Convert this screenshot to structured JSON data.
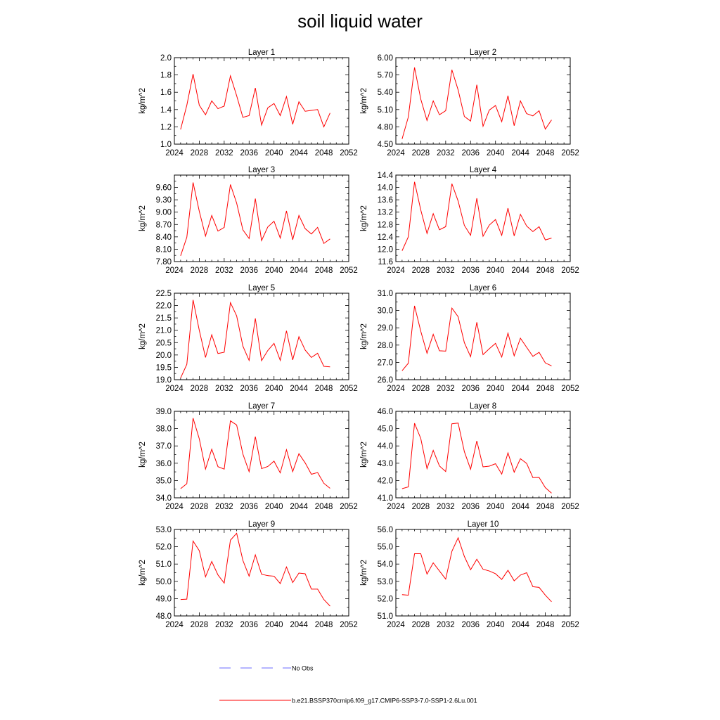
{
  "figure": {
    "title": "soil liquid water"
  },
  "legend": {
    "obs_label": "No Obs",
    "model_label": "b.e21.BSSP370cmip6.f09_g17.CMIP6-SSP3-7.0-SSP1-2.6Lu.001",
    "obs_color": "#3b3bff",
    "model_color": "#ff0000"
  },
  "chart_data": [
    {
      "type": "line",
      "title": "Layer 1",
      "ylabel": "kg/m^2",
      "xlim": [
        2024,
        2052
      ],
      "xticks": [
        2024,
        2028,
        2032,
        2036,
        2040,
        2044,
        2048,
        2052
      ],
      "ylim": [
        1.0,
        2.0
      ],
      "yticks": [
        "1.0",
        "1.2",
        "1.4",
        "1.6",
        "1.8",
        "2.0"
      ],
      "x": [
        2025,
        2026,
        2027,
        2028,
        2029,
        2030,
        2031,
        2032,
        2033,
        2034,
        2035,
        2036,
        2037,
        2038,
        2039,
        2040,
        2041,
        2042,
        2043,
        2044,
        2045,
        2046,
        2047,
        2048,
        2049
      ],
      "series": [
        {
          "values": [
            1.17,
            1.45,
            1.81,
            1.45,
            1.34,
            1.5,
            1.41,
            1.44,
            1.79,
            1.56,
            1.31,
            1.33,
            1.65,
            1.22,
            1.42,
            1.47,
            1.33,
            1.55,
            1.23,
            1.49,
            1.38,
            1.39,
            1.4,
            1.2,
            1.36
          ]
        }
      ]
    },
    {
      "type": "line",
      "title": "Layer 2",
      "ylabel": "kg/m^2",
      "xlim": [
        2024,
        2052
      ],
      "xticks": [
        2024,
        2028,
        2032,
        2036,
        2040,
        2044,
        2048,
        2052
      ],
      "ylim": [
        4.5,
        6.0
      ],
      "yticks": [
        "4.50",
        "4.80",
        "5.10",
        "5.40",
        "5.70",
        "6.00"
      ],
      "x": [
        2025,
        2026,
        2027,
        2028,
        2029,
        2030,
        2031,
        2032,
        2033,
        2034,
        2035,
        2036,
        2037,
        2038,
        2039,
        2040,
        2041,
        2042,
        2043,
        2044,
        2045,
        2046,
        2047,
        2048,
        2049
      ],
      "series": [
        {
          "values": [
            4.59,
            4.97,
            5.83,
            5.28,
            4.91,
            5.25,
            5.01,
            5.08,
            5.79,
            5.44,
            4.98,
            4.9,
            5.53,
            4.81,
            5.09,
            5.17,
            4.89,
            5.34,
            4.82,
            5.25,
            5.03,
            4.99,
            5.08,
            4.76,
            4.92
          ]
        }
      ]
    },
    {
      "type": "line",
      "title": "Layer 3",
      "ylabel": "kg/m^2",
      "xlim": [
        2024,
        2052
      ],
      "xticks": [
        2024,
        2028,
        2032,
        2036,
        2040,
        2044,
        2048,
        2052
      ],
      "ylim": [
        7.8,
        9.9
      ],
      "yticks": [
        "7.80",
        "8.10",
        "8.40",
        "8.70",
        "9.00",
        "9.30",
        "9.60"
      ],
      "x": [
        2025,
        2026,
        2027,
        2028,
        2029,
        2030,
        2031,
        2032,
        2033,
        2034,
        2035,
        2036,
        2037,
        2038,
        2039,
        2040,
        2041,
        2042,
        2043,
        2044,
        2045,
        2046,
        2047,
        2048,
        2049
      ],
      "series": [
        {
          "values": [
            7.94,
            8.39,
            9.72,
            9.02,
            8.42,
            8.92,
            8.54,
            8.63,
            9.67,
            9.22,
            8.57,
            8.36,
            9.33,
            8.31,
            8.64,
            8.78,
            8.37,
            9.03,
            8.33,
            8.92,
            8.6,
            8.47,
            8.63,
            8.24,
            8.35
          ]
        }
      ]
    },
    {
      "type": "line",
      "title": "Layer 4",
      "ylabel": "kg/m^2",
      "xlim": [
        2024,
        2052
      ],
      "xticks": [
        2024,
        2028,
        2032,
        2036,
        2040,
        2044,
        2048,
        2052
      ],
      "ylim": [
        11.6,
        14.4
      ],
      "yticks": [
        "11.6",
        "12.0",
        "12.4",
        "12.8",
        "13.2",
        "13.6",
        "14.0",
        "14.4"
      ],
      "x": [
        2025,
        2026,
        2027,
        2028,
        2029,
        2030,
        2031,
        2032,
        2033,
        2034,
        2035,
        2036,
        2037,
        2038,
        2039,
        2040,
        2041,
        2042,
        2043,
        2044,
        2045,
        2046,
        2047,
        2048,
        2049
      ],
      "series": [
        {
          "values": [
            11.95,
            12.4,
            14.18,
            13.27,
            12.51,
            13.15,
            12.63,
            12.73,
            14.12,
            13.56,
            12.77,
            12.45,
            13.65,
            12.42,
            12.78,
            12.96,
            12.45,
            13.33,
            12.43,
            13.13,
            12.75,
            12.57,
            12.73,
            12.3,
            12.36
          ]
        }
      ]
    },
    {
      "type": "line",
      "title": "Layer 5",
      "ylabel": "kg/m^2",
      "xlim": [
        2024,
        2052
      ],
      "xticks": [
        2024,
        2028,
        2032,
        2036,
        2040,
        2044,
        2048,
        2052
      ],
      "ylim": [
        19.0,
        22.5
      ],
      "yticks": [
        "19.0",
        "19.5",
        "20.0",
        "20.5",
        "21.0",
        "21.5",
        "22.0",
        "22.5"
      ],
      "x": [
        2025,
        2026,
        2027,
        2028,
        2029,
        2030,
        2031,
        2032,
        2033,
        2034,
        2035,
        2036,
        2037,
        2038,
        2039,
        2040,
        2041,
        2042,
        2043,
        2044,
        2045,
        2046,
        2047,
        2048,
        2049
      ],
      "series": [
        {
          "values": [
            19.07,
            19.62,
            22.23,
            21.0,
            19.9,
            20.82,
            20.06,
            20.11,
            22.12,
            21.58,
            20.36,
            19.78,
            21.48,
            19.77,
            20.18,
            20.47,
            19.78,
            20.98,
            19.8,
            20.74,
            20.2,
            19.9,
            20.07,
            19.54,
            19.52
          ]
        }
      ]
    },
    {
      "type": "line",
      "title": "Layer 6",
      "ylabel": "kg/m^2",
      "xlim": [
        2024,
        2052
      ],
      "xticks": [
        2024,
        2028,
        2032,
        2036,
        2040,
        2044,
        2048,
        2052
      ],
      "ylim": [
        26.0,
        31.0
      ],
      "yticks": [
        "26.0",
        "27.0",
        "28.0",
        "29.0",
        "30.0",
        "31.0"
      ],
      "x": [
        2025,
        2026,
        2027,
        2028,
        2029,
        2030,
        2031,
        2032,
        2033,
        2034,
        2035,
        2036,
        2037,
        2038,
        2039,
        2040,
        2041,
        2042,
        2043,
        2044,
        2045,
        2046,
        2047,
        2048,
        2049
      ],
      "series": [
        {
          "values": [
            26.52,
            26.95,
            30.27,
            28.8,
            27.53,
            28.62,
            27.67,
            27.65,
            30.14,
            29.64,
            28.14,
            27.33,
            29.32,
            27.45,
            27.79,
            28.1,
            27.31,
            28.69,
            27.38,
            28.4,
            27.87,
            27.35,
            27.58,
            26.97,
            26.8
          ]
        }
      ]
    },
    {
      "type": "line",
      "title": "Layer 7",
      "ylabel": "kg/m^2",
      "xlim": [
        2024,
        2052
      ],
      "xticks": [
        2024,
        2028,
        2032,
        2036,
        2040,
        2044,
        2048,
        2052
      ],
      "ylim": [
        34.0,
        39.0
      ],
      "yticks": [
        "34.0",
        "35.0",
        "36.0",
        "37.0",
        "38.0",
        "39.0"
      ],
      "x": [
        2025,
        2026,
        2027,
        2028,
        2029,
        2030,
        2031,
        2032,
        2033,
        2034,
        2035,
        2036,
        2037,
        2038,
        2039,
        2040,
        2041,
        2042,
        2043,
        2044,
        2045,
        2046,
        2047,
        2048,
        2049
      ],
      "series": [
        {
          "values": [
            34.53,
            34.82,
            38.61,
            37.41,
            35.66,
            36.81,
            35.8,
            35.66,
            38.45,
            38.21,
            36.53,
            35.51,
            37.54,
            35.69,
            35.81,
            36.12,
            35.44,
            36.78,
            35.51,
            36.55,
            36.02,
            35.36,
            35.46,
            34.84,
            34.55
          ]
        }
      ]
    },
    {
      "type": "line",
      "title": "Layer 8",
      "ylabel": "kg/m^2",
      "xlim": [
        2024,
        2052
      ],
      "xticks": [
        2024,
        2028,
        2032,
        2036,
        2040,
        2044,
        2048,
        2052
      ],
      "ylim": [
        41.0,
        46.0
      ],
      "yticks": [
        "41.0",
        "42.0",
        "43.0",
        "44.0",
        "45.0",
        "46.0"
      ],
      "x": [
        2025,
        2026,
        2027,
        2028,
        2029,
        2030,
        2031,
        2032,
        2033,
        2034,
        2035,
        2036,
        2037,
        2038,
        2039,
        2040,
        2041,
        2042,
        2043,
        2044,
        2045,
        2046,
        2047,
        2048,
        2049
      ],
      "series": [
        {
          "values": [
            41.53,
            41.63,
            45.31,
            44.43,
            42.69,
            43.74,
            42.84,
            42.52,
            45.28,
            45.32,
            43.67,
            42.65,
            44.29,
            42.79,
            42.83,
            42.97,
            42.37,
            43.6,
            42.48,
            43.26,
            42.99,
            42.17,
            42.18,
            41.59,
            41.27
          ]
        }
      ]
    },
    {
      "type": "line",
      "title": "Layer 9",
      "ylabel": "kg/m^2",
      "xlim": [
        2024,
        2052
      ],
      "xticks": [
        2024,
        2028,
        2032,
        2036,
        2040,
        2044,
        2048,
        2052
      ],
      "ylim": [
        48.0,
        53.0
      ],
      "yticks": [
        "48.0",
        "49.0",
        "50.0",
        "51.0",
        "52.0",
        "53.0"
      ],
      "x": [
        2025,
        2026,
        2027,
        2028,
        2029,
        2030,
        2031,
        2032,
        2033,
        2034,
        2035,
        2036,
        2037,
        2038,
        2039,
        2040,
        2041,
        2042,
        2043,
        2044,
        2045,
        2046,
        2047,
        2048,
        2049
      ],
      "series": [
        {
          "values": [
            48.95,
            48.97,
            52.33,
            51.77,
            50.26,
            51.15,
            50.37,
            49.9,
            52.38,
            52.78,
            51.21,
            50.3,
            51.53,
            50.41,
            50.33,
            50.3,
            49.87,
            50.83,
            49.93,
            50.48,
            50.44,
            49.55,
            49.55,
            48.95,
            48.57
          ]
        }
      ]
    },
    {
      "type": "line",
      "title": "Layer 10",
      "ylabel": "kg/m^2",
      "xlim": [
        2024,
        2052
      ],
      "xticks": [
        2024,
        2028,
        2032,
        2036,
        2040,
        2044,
        2048,
        2052
      ],
      "ylim": [
        51.0,
        56.0
      ],
      "yticks": [
        "51.0",
        "52.0",
        "53.0",
        "54.0",
        "55.0",
        "56.0"
      ],
      "x": [
        2025,
        2026,
        2027,
        2028,
        2029,
        2030,
        2031,
        2032,
        2033,
        2034,
        2035,
        2036,
        2037,
        2038,
        2039,
        2040,
        2041,
        2042,
        2043,
        2044,
        2045,
        2046,
        2047,
        2048,
        2049
      ],
      "series": [
        {
          "values": [
            52.23,
            52.2,
            54.6,
            54.6,
            53.42,
            54.07,
            53.6,
            53.13,
            54.74,
            55.52,
            54.44,
            53.67,
            54.28,
            53.7,
            53.6,
            53.44,
            53.11,
            53.64,
            53.03,
            53.36,
            53.5,
            52.69,
            52.65,
            52.2,
            51.82
          ]
        }
      ]
    }
  ]
}
